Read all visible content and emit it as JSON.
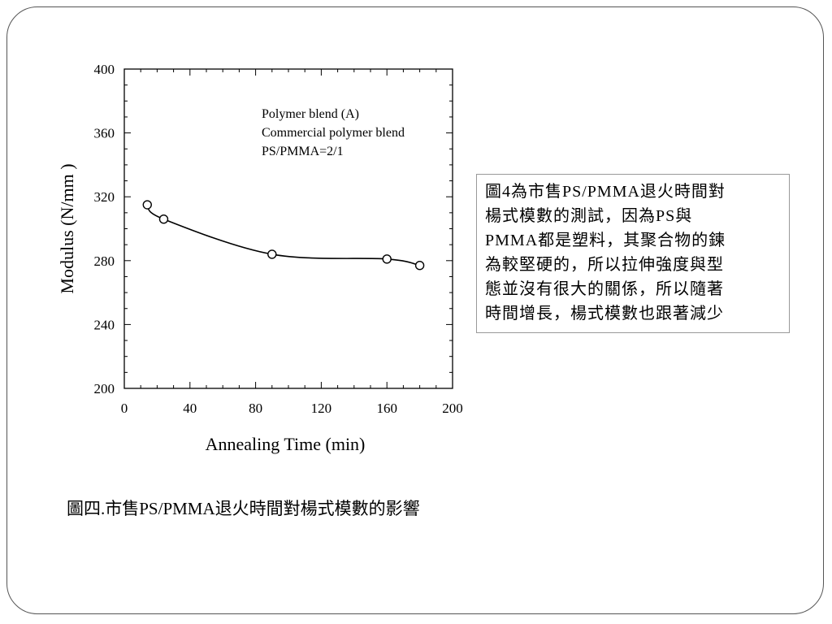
{
  "chart_data": {
    "type": "line",
    "xlabel": "Annealing Time (min)",
    "ylabel": "Modulus (N/mm )",
    "xlim": [
      0,
      200
    ],
    "ylim": [
      200,
      400
    ],
    "x_ticks": [
      "0",
      "40",
      "80",
      "120",
      "160",
      "200"
    ],
    "y_ticks": [
      "200",
      "240",
      "280",
      "320",
      "360",
      "400"
    ],
    "annotation": [
      "Polymer blend (A)",
      "Commercial polymer blend",
      "PS/PMMA=2/1"
    ],
    "grid": false,
    "markers": "open-circle",
    "series": [
      {
        "x": [
          14,
          24,
          90,
          160,
          180
        ],
        "y": [
          315,
          306,
          284,
          281,
          277
        ],
        "color": "#000000"
      }
    ]
  },
  "description": {
    "lines": [
      "圖4為市售PS/PMMA退火時間對",
      "楊式模數的測試，因為PS與",
      "PMMA都是塑料，其聚合物的鍊",
      "為較堅硬的，所以拉伸強度與型",
      "態並沒有很大的關係，所以隨著",
      "時間增長，楊式模數也跟著減少"
    ]
  },
  "caption": "圖四.市售PS/PMMA退火時間對楊式模數的影響"
}
